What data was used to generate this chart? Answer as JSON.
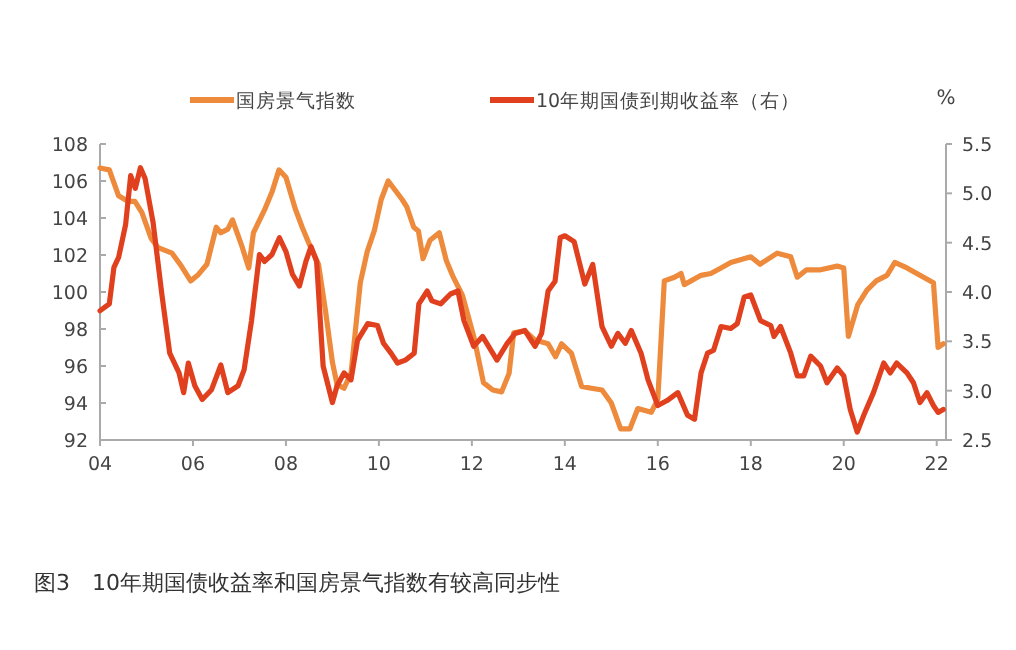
{
  "chart_data": {
    "type": "line",
    "legend": "top",
    "grid": false,
    "marker": "none",
    "line_style": "solid",
    "y2label": "%",
    "annotations": [
      "图3　10年期国债收益率和国房景气指数有较高同步性"
    ],
    "xlim": [
      2004,
      2022.2
    ],
    "xticks": [
      {
        "value": 2004,
        "label": "04"
      },
      {
        "value": 2006,
        "label": "06"
      },
      {
        "value": 2008,
        "label": "08"
      },
      {
        "value": 2010,
        "label": "10"
      },
      {
        "value": 2012,
        "label": "12"
      },
      {
        "value": 2014,
        "label": "14"
      },
      {
        "value": 2016,
        "label": "16"
      },
      {
        "value": 2018,
        "label": "18"
      },
      {
        "value": 2020,
        "label": "20"
      },
      {
        "value": 2022,
        "label": "22"
      }
    ],
    "ylim": [
      92,
      108
    ],
    "yticks": [
      92,
      94,
      96,
      98,
      100,
      102,
      104,
      106,
      108
    ],
    "y2lim": [
      2.5,
      5.5
    ],
    "y2ticks": [
      {
        "value": 2.5,
        "label": "2.5"
      },
      {
        "value": 3,
        "label": "3.0"
      },
      {
        "value": 3.5,
        "label": "3.5"
      },
      {
        "value": 4,
        "label": "4.0"
      },
      {
        "value": 4.5,
        "label": "4.5"
      },
      {
        "value": 5,
        "label": "5.0"
      },
      {
        "value": 5.5,
        "label": "5.5"
      }
    ],
    "series": [
      {
        "name": "国房景气指数",
        "color": "#ee8a3c",
        "x": [
          2004,
          2004.2,
          2004.4,
          2004.6,
          2004.75,
          2004.9,
          2005.1,
          2005.25,
          2005.55,
          2005.75,
          2005.95,
          2006.1,
          2006.3,
          2006.5,
          2006.6,
          2006.75,
          2006.85,
          2007.05,
          2007.2,
          2007.3,
          2007.55,
          2007.7,
          2007.85,
          2008,
          2008.2,
          2008.35,
          2008.5,
          2008.7,
          2008.85,
          2009,
          2009.1,
          2009.25,
          2009.4,
          2009.6,
          2009.75,
          2009.9,
          2010.05,
          2010.2,
          2010.35,
          2010.5,
          2010.6,
          2010.75,
          2010.85,
          2010.95,
          2011.1,
          2011.3,
          2011.45,
          2011.6,
          2011.8,
          2012.05,
          2012.25,
          2012.45,
          2012.64,
          2012.8,
          2012.9,
          2013.14,
          2013.36,
          2013.64,
          2013.8,
          2013.93,
          2014.14,
          2014.36,
          2014.57,
          2014.8,
          2015,
          2015.2,
          2015.4,
          2015.57,
          2015.86,
          2016,
          2016.14,
          2016.36,
          2016.5,
          2016.57,
          2016.93,
          2017.14,
          2017.36,
          2017.57,
          2018,
          2018.2,
          2018.57,
          2018.86,
          2019,
          2019.2,
          2019.5,
          2019.86,
          2020,
          2020.1,
          2020.3,
          2020.5,
          2020.7,
          2020.93,
          2021.1,
          2021.36,
          2021.64,
          2021.93,
          2022.03,
          2022.14
        ],
        "values": [
          106.7,
          106.6,
          105.2,
          104.9,
          104.9,
          104.3,
          102.9,
          102.4,
          102.1,
          101.4,
          100.6,
          100.9,
          101.5,
          103.5,
          103.2,
          103.4,
          103.9,
          102.5,
          101.3,
          103.2,
          104.5,
          105.4,
          106.6,
          106.2,
          104.5,
          103.5,
          102.6,
          101.5,
          99,
          96.2,
          95,
          94.8,
          95.6,
          100.5,
          102.2,
          103.3,
          105,
          106,
          105.5,
          105,
          104.6,
          103.5,
          103.3,
          101.8,
          102.8,
          103.2,
          101.7,
          100.8,
          99.8,
          97.5,
          95.1,
          94.7,
          94.6,
          95.6,
          97.8,
          97.9,
          97.4,
          97.2,
          96.5,
          97.2,
          96.7,
          94.9,
          94.8,
          94.7,
          94,
          92.6,
          92.6,
          93.7,
          93.5,
          94.2,
          100.6,
          100.8,
          101,
          100.4,
          100.9,
          101,
          101.3,
          101.6,
          101.9,
          101.5,
          102.1,
          101.9,
          100.8,
          101.2,
          101.2,
          101.4,
          101.3,
          97.6,
          99.3,
          100.1,
          100.6,
          100.9,
          101.6,
          101.3,
          100.9,
          100.5,
          97,
          97.2
        ]
      },
      {
        "name": "10年期国债到期收益率（右）",
        "color": "#e0401e",
        "axis": "y2",
        "x": [
          2004,
          2004.2,
          2004.3,
          2004.4,
          2004.55,
          2004.66,
          2004.76,
          2004.87,
          2004.97,
          2005.14,
          2005.33,
          2005.5,
          2005.7,
          2005.8,
          2005.9,
          2006.04,
          2006.2,
          2006.4,
          2006.6,
          2006.75,
          2006.97,
          2007.1,
          2007.26,
          2007.43,
          2007.54,
          2007.7,
          2007.86,
          2008,
          2008.14,
          2008.29,
          2008.43,
          2008.54,
          2008.66,
          2008.8,
          2009,
          2009.1,
          2009.25,
          2009.4,
          2009.54,
          2009.76,
          2009.97,
          2010.1,
          2010.26,
          2010.4,
          2010.57,
          2010.76,
          2010.86,
          2011.04,
          2011.14,
          2011.33,
          2011.54,
          2011.7,
          2011.83,
          2012.04,
          2012.23,
          2012.54,
          2012.76,
          2012.93,
          2013.14,
          2013.36,
          2013.5,
          2013.64,
          2013.79,
          2013.9,
          2014,
          2014.2,
          2014.43,
          2014.6,
          2014.8,
          2015,
          2015.14,
          2015.3,
          2015.43,
          2015.64,
          2015.79,
          2016,
          2016.2,
          2016.43,
          2016.64,
          2016.79,
          2016.93,
          2017.07,
          2017.2,
          2017.36,
          2017.57,
          2017.71,
          2017.86,
          2018,
          2018.21,
          2018.43,
          2018.5,
          2018.64,
          2018.86,
          2019,
          2019.14,
          2019.29,
          2019.5,
          2019.64,
          2019.86,
          2020,
          2020.14,
          2020.29,
          2020.43,
          2020.64,
          2020.86,
          2021,
          2021.14,
          2021.36,
          2021.5,
          2021.64,
          2021.79,
          2021.93,
          2022.03,
          2022.14
        ],
        "values": [
          3.81,
          3.88,
          4.25,
          4.35,
          4.68,
          5.18,
          5.05,
          5.26,
          5.15,
          4.71,
          3.98,
          3.38,
          3.18,
          2.98,
          3.28,
          3.05,
          2.91,
          3.01,
          3.26,
          2.98,
          3.05,
          3.21,
          3.71,
          4.38,
          4.31,
          4.38,
          4.55,
          4.41,
          4.18,
          4.06,
          4.31,
          4.46,
          4.31,
          3.25,
          2.88,
          3.05,
          3.18,
          3.11,
          3.51,
          3.68,
          3.66,
          3.48,
          3.38,
          3.28,
          3.31,
          3.38,
          3.88,
          4.01,
          3.91,
          3.88,
          3.98,
          4.01,
          3.71,
          3.45,
          3.55,
          3.31,
          3.48,
          3.58,
          3.61,
          3.45,
          3.58,
          4.01,
          4.11,
          4.55,
          4.57,
          4.51,
          4.08,
          4.28,
          3.65,
          3.45,
          3.58,
          3.48,
          3.61,
          3.38,
          3.11,
          2.85,
          2.9,
          2.98,
          2.75,
          2.71,
          3.18,
          3.38,
          3.41,
          3.65,
          3.63,
          3.68,
          3.95,
          3.97,
          3.71,
          3.66,
          3.55,
          3.65,
          3.38,
          3.15,
          3.15,
          3.35,
          3.25,
          3.08,
          3.23,
          3.15,
          2.81,
          2.58,
          2.75,
          2.98,
          3.28,
          3.18,
          3.28,
          3.18,
          3.08,
          2.88,
          2.98,
          2.85,
          2.78,
          2.81
        ]
      }
    ]
  }
}
